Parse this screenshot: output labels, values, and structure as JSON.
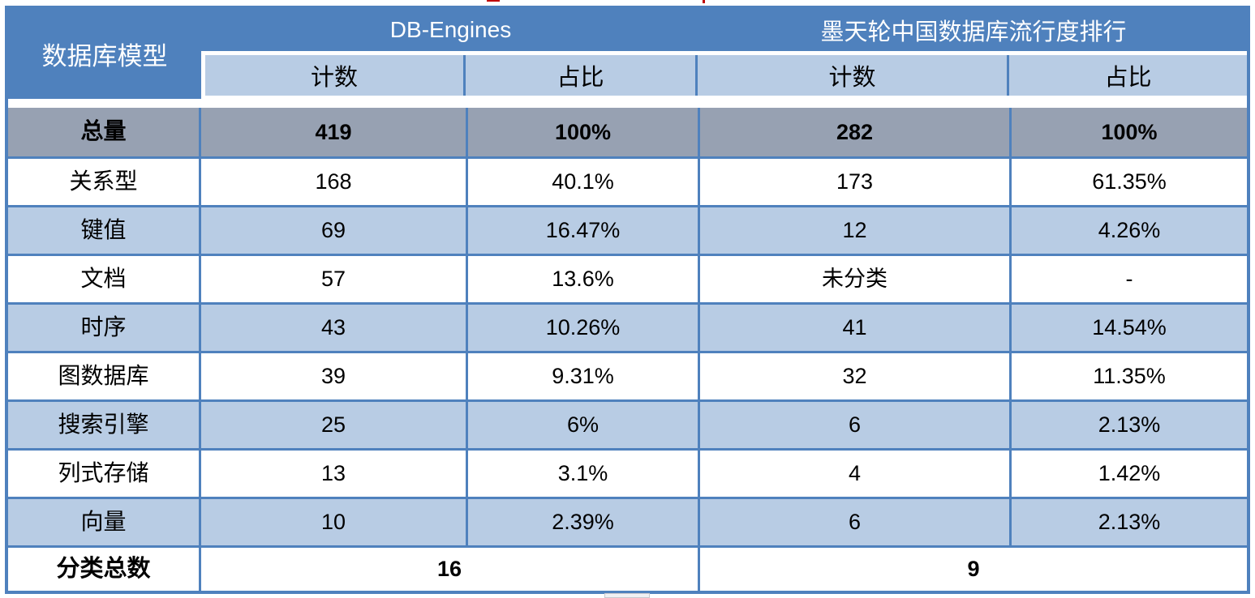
{
  "table": {
    "row_header": "数据库模型",
    "groups": [
      {
        "label": "DB-Engines"
      },
      {
        "label": "墨天轮中国数据库流行度排行"
      }
    ],
    "sub_headers": [
      "计数",
      "占比",
      "计数",
      "占比"
    ],
    "rows": [
      {
        "label": "总量",
        "cells": [
          "419",
          "100%",
          "282",
          "100%"
        ]
      },
      {
        "label": "关系型",
        "cells": [
          "168",
          "40.1%",
          "173",
          "61.35%"
        ]
      },
      {
        "label": "键值",
        "cells": [
          "69",
          "16.47%",
          "12",
          "4.26%"
        ]
      },
      {
        "label": "文档",
        "cells": [
          "57",
          "13.6%",
          "未分类",
          "-"
        ]
      },
      {
        "label": "时序",
        "cells": [
          "43",
          "10.26%",
          "41",
          "14.54%"
        ]
      },
      {
        "label": "图数据库",
        "cells": [
          "39",
          "9.31%",
          "32",
          "11.35%"
        ]
      },
      {
        "label": "搜索引擎",
        "cells": [
          "25",
          "6%",
          "6",
          "2.13%"
        ]
      },
      {
        "label": "列式存储",
        "cells": [
          "13",
          "3.1%",
          "4",
          "1.42%"
        ]
      },
      {
        "label": "向量",
        "cells": [
          "10",
          "2.39%",
          "6",
          "2.13%"
        ]
      }
    ],
    "footer": {
      "label": "分类总数",
      "left_value": "16",
      "right_value": "9"
    }
  },
  "colors": {
    "header_blue": "#4F81BD",
    "light_blue": "#B8CCE4",
    "total_row_gray": "#97A1B2",
    "border_blue": "#4F81BD",
    "header_text": "#FFFFFF",
    "body_text": "#000000"
  },
  "chart_data": {
    "type": "table",
    "columns": [
      "数据库模型",
      "DB-Engines 计数",
      "DB-Engines 占比",
      "墨天轮中国数据库流行度排行 计数",
      "墨天轮中国数据库流行度排行 占比"
    ],
    "rows": [
      [
        "总量",
        "419",
        "100%",
        "282",
        "100%"
      ],
      [
        "关系型",
        "168",
        "40.1%",
        "173",
        "61.35%"
      ],
      [
        "键值",
        "69",
        "16.47%",
        "12",
        "4.26%"
      ],
      [
        "文档",
        "57",
        "13.6%",
        "未分类",
        "-"
      ],
      [
        "时序",
        "43",
        "10.26%",
        "41",
        "14.54%"
      ],
      [
        "图数据库",
        "39",
        "9.31%",
        "32",
        "11.35%"
      ],
      [
        "搜索引擎",
        "25",
        "6%",
        "6",
        "2.13%"
      ],
      [
        "列式存储",
        "13",
        "3.1%",
        "4",
        "1.42%"
      ],
      [
        "向量",
        "10",
        "2.39%",
        "6",
        "2.13%"
      ],
      [
        "分类总数",
        "16",
        "",
        "9",
        ""
      ]
    ],
    "notes": "总量 row and 分类总数 row rendered bold; 分类总数 values span both sub-columns of each ranking source"
  }
}
